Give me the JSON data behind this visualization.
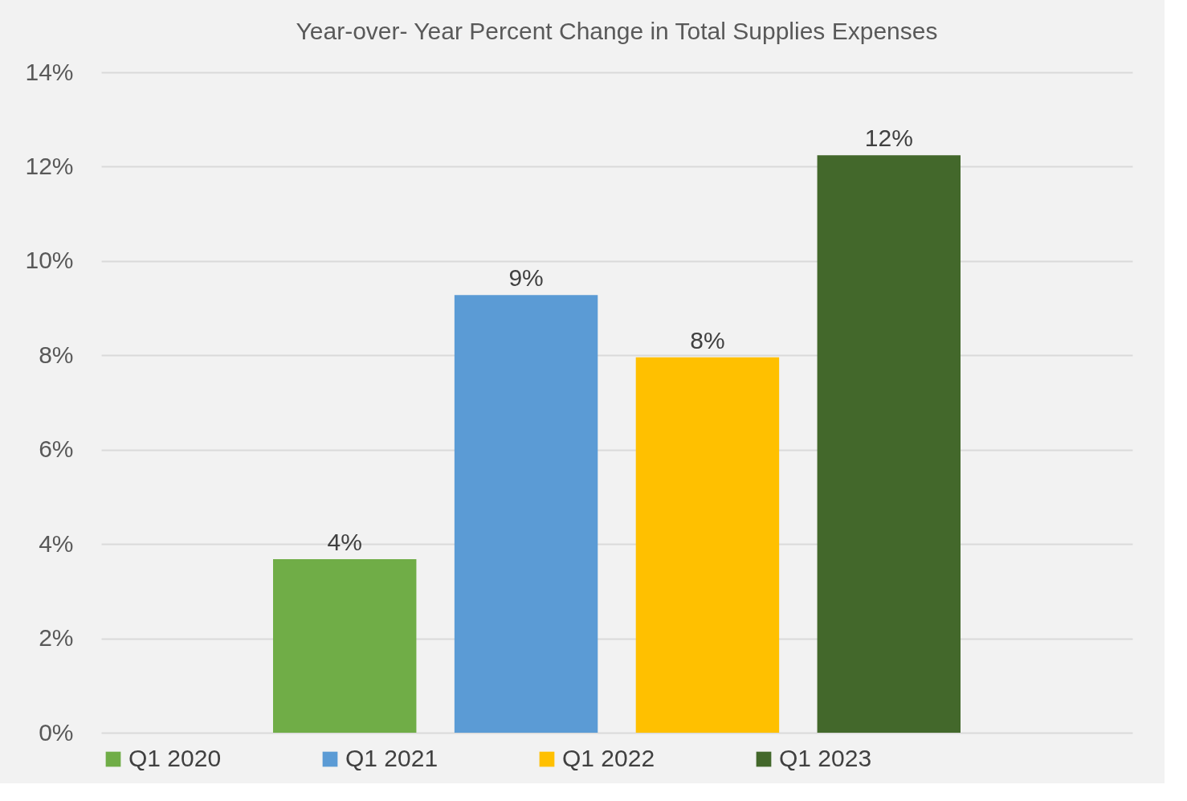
{
  "chart_data": {
    "type": "bar",
    "title": "Year-over- Year Percent Change in Total Supplies Expenses",
    "categories": [
      null
    ],
    "series": [
      {
        "name": "Q1 2020",
        "color": "#70ad47",
        "values": [
          3.68
        ],
        "value_labels": [
          "4%"
        ]
      },
      {
        "name": "Q1 2021",
        "color": "#5b9bd5",
        "values": [
          9.28
        ],
        "value_labels": [
          "9%"
        ]
      },
      {
        "name": "Q1 2022",
        "color": "#ffc000",
        "values": [
          7.96
        ],
        "value_labels": [
          "8%"
        ]
      },
      {
        "name": "Q1 2023",
        "color": "#43682b",
        "values": [
          12.24
        ],
        "value_labels": [
          "12%"
        ]
      }
    ],
    "ylim": [
      0,
      14
    ],
    "yticks": [
      {
        "value": 0,
        "label": "0%"
      },
      {
        "value": 2,
        "label": "2%"
      },
      {
        "value": 4,
        "label": "4%"
      },
      {
        "value": 6,
        "label": "6%"
      },
      {
        "value": 8,
        "label": "8%"
      },
      {
        "value": 10,
        "label": "10%"
      },
      {
        "value": 12,
        "label": "12%"
      },
      {
        "value": 14,
        "label": "14%"
      }
    ],
    "grid": "y",
    "legend": "bottom"
  }
}
